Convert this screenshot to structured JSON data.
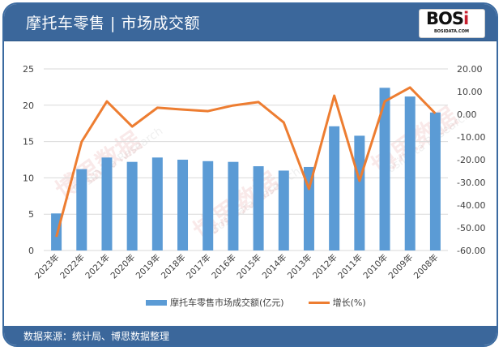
{
  "header": {
    "title": "摩托车零售 | 市场成交额",
    "logo_text": "BOS",
    "logo_accent": "i",
    "logo_sub": "BOSIDATA.COM"
  },
  "footer": {
    "source": "数据来源：统计局、博思数据整理"
  },
  "watermark": {
    "cn": "博思数据",
    "en": "BosiData Research"
  },
  "colors": {
    "header_bg": "#3b679b",
    "bar": "#5b9bd5",
    "line": "#ed7d31",
    "grid": "#d9d9d9"
  },
  "legend": {
    "bar_label": "摩托车零售市场成交额(亿元)",
    "line_label": "增长(%)"
  },
  "chart_data": {
    "type": "bar+line",
    "title": "摩托车零售 | 市场成交额",
    "categories": [
      "2023年",
      "2022年",
      "2021年",
      "2020年",
      "2019年",
      "2018年",
      "2017年",
      "2016年",
      "2015年",
      "2014年",
      "2013年",
      "2012年",
      "2011年",
      "2010年",
      "2009年",
      "2008年"
    ],
    "series": [
      {
        "name": "摩托车零售市场成交额(亿元)",
        "type": "bar",
        "axis": "left",
        "values": [
          5.1,
          11.2,
          12.8,
          12.2,
          12.8,
          12.5,
          12.3,
          12.2,
          11.6,
          11.0,
          11.5,
          17.1,
          15.8,
          22.4,
          21.2,
          19.0
        ]
      },
      {
        "name": "增长(%)",
        "type": "line",
        "axis": "right",
        "values": [
          -54.0,
          -12.1,
          5.7,
          -5.4,
          2.9,
          2.1,
          1.4,
          3.9,
          5.4,
          -3.6,
          -32.9,
          8.2,
          -29.3,
          5.7,
          11.8,
          0.4
        ]
      }
    ],
    "y_left": {
      "ticks": [
        "0",
        "5",
        "10",
        "15",
        "20",
        "25"
      ],
      "ylim": [
        0,
        25
      ]
    },
    "y_right": {
      "ticks": [
        "20.00",
        "10.00",
        "0.00",
        "-10.00",
        "-20.00",
        "-30.00",
        "-40.00",
        "-50.00",
        "-60.00"
      ],
      "ylim": [
        -60,
        20
      ]
    },
    "grid": true,
    "legend_position": "bottom"
  }
}
